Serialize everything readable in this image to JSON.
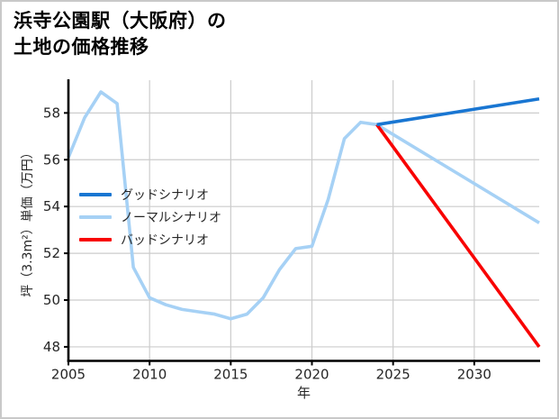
{
  "page": {
    "title_line1": "浜寺公園駅（大阪府）の",
    "title_line2": "土地の価格推移"
  },
  "chart_data": {
    "type": "line",
    "title": "浜寺公園駅（大阪府）の土地の価格推移",
    "xlabel": "年",
    "ylabel": "坪（3.3m²）単価（万円）",
    "xlim": [
      2005,
      2034
    ],
    "ylim": [
      47.4,
      59.4
    ],
    "xticks": [
      2005,
      2010,
      2015,
      2020,
      2025,
      2030
    ],
    "yticks": [
      48,
      50,
      52,
      54,
      56,
      58
    ],
    "grid": true,
    "grid_color": "#cccccc",
    "legend_position": "center-left",
    "series": [
      {
        "name": "グッドシナリオ",
        "color": "#1976d2",
        "x": [
          2024,
          2034
        ],
        "y": [
          57.5,
          58.6
        ]
      },
      {
        "name": "ノーマルシナリオ",
        "color": "#a6d1f5",
        "x": [
          2005,
          2006,
          2007,
          2008,
          2009,
          2010,
          2011,
          2012,
          2013,
          2014,
          2015,
          2016,
          2017,
          2018,
          2019,
          2020,
          2021,
          2022,
          2023,
          2024,
          2034
        ],
        "y": [
          56.1,
          57.8,
          58.9,
          58.4,
          51.4,
          50.1,
          49.8,
          49.6,
          49.5,
          49.4,
          49.2,
          49.4,
          50.1,
          51.3,
          52.2,
          52.3,
          54.3,
          56.9,
          57.6,
          57.5,
          53.3
        ]
      },
      {
        "name": "バッドシナリオ",
        "color": "#f80000",
        "x": [
          2024,
          2034
        ],
        "y": [
          57.5,
          48.0
        ]
      }
    ]
  }
}
